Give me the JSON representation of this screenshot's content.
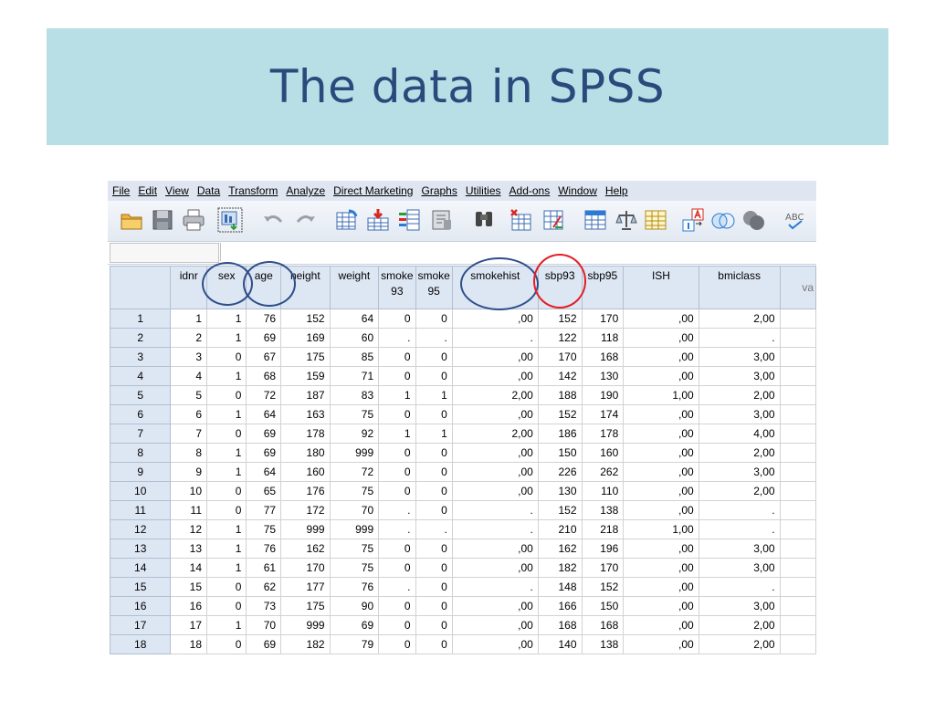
{
  "slide": {
    "title": "The data in SPSS"
  },
  "menu": [
    "File",
    "Edit",
    "View",
    "Data",
    "Transform",
    "Analyze",
    "Direct Marketing",
    "Graphs",
    "Utilities",
    "Add-ons",
    "Window",
    "Help"
  ],
  "toolbar_icons": [
    "open-folder-icon",
    "save-icon",
    "print-icon",
    "dialog-recall-icon",
    "undo-icon",
    "redo-icon",
    "goto-case-icon",
    "goto-variable-icon",
    "variables-icon",
    "run-descriptives-icon",
    "find-icon",
    "insert-cases-icon",
    "insert-variable-icon",
    "split-file-icon",
    "weight-cases-icon",
    "select-cases-icon",
    "value-labels-icon",
    "use-sets-icon",
    "show-sets-icon",
    "spell-check-icon"
  ],
  "columns": [
    {
      "key": "idnr",
      "label": "idnr",
      "label2": ""
    },
    {
      "key": "sex",
      "label": "sex",
      "label2": ""
    },
    {
      "key": "age",
      "label": "age",
      "label2": ""
    },
    {
      "key": "height",
      "label": "height",
      "label2": ""
    },
    {
      "key": "weight",
      "label": "weight",
      "label2": ""
    },
    {
      "key": "smoke93",
      "label": "smoke",
      "label2": "93"
    },
    {
      "key": "smoke95",
      "label": "smoke",
      "label2": "95"
    },
    {
      "key": "smokehist",
      "label": "smokehist",
      "label2": ""
    },
    {
      "key": "sbp93",
      "label": "sbp93",
      "label2": ""
    },
    {
      "key": "sbp95",
      "label": "sbp95",
      "label2": ""
    },
    {
      "key": "ISH",
      "label": "ISH",
      "label2": ""
    },
    {
      "key": "bmiclass",
      "label": "bmiclass",
      "label2": ""
    },
    {
      "key": "var",
      "label": "va",
      "label2": ""
    }
  ],
  "rows": [
    {
      "n": "1",
      "cells": [
        "1",
        "1",
        "76",
        "152",
        "64",
        "0",
        "0",
        ",00",
        "152",
        "170",
        ",00",
        "2,00",
        ""
      ]
    },
    {
      "n": "2",
      "cells": [
        "2",
        "1",
        "69",
        "169",
        "60",
        ".",
        ".",
        ".",
        "122",
        "118",
        ",00",
        ".",
        ""
      ]
    },
    {
      "n": "3",
      "cells": [
        "3",
        "0",
        "67",
        "175",
        "85",
        "0",
        "0",
        ",00",
        "170",
        "168",
        ",00",
        "3,00",
        ""
      ]
    },
    {
      "n": "4",
      "cells": [
        "4",
        "1",
        "68",
        "159",
        "71",
        "0",
        "0",
        ",00",
        "142",
        "130",
        ",00",
        "3,00",
        ""
      ]
    },
    {
      "n": "5",
      "cells": [
        "5",
        "0",
        "72",
        "187",
        "83",
        "1",
        "1",
        "2,00",
        "188",
        "190",
        "1,00",
        "2,00",
        ""
      ]
    },
    {
      "n": "6",
      "cells": [
        "6",
        "1",
        "64",
        "163",
        "75",
        "0",
        "0",
        ",00",
        "152",
        "174",
        ",00",
        "3,00",
        ""
      ]
    },
    {
      "n": "7",
      "cells": [
        "7",
        "0",
        "69",
        "178",
        "92",
        "1",
        "1",
        "2,00",
        "186",
        "178",
        ",00",
        "4,00",
        ""
      ]
    },
    {
      "n": "8",
      "cells": [
        "8",
        "1",
        "69",
        "180",
        "999",
        "0",
        "0",
        ",00",
        "150",
        "160",
        ",00",
        "2,00",
        ""
      ]
    },
    {
      "n": "9",
      "cells": [
        "9",
        "1",
        "64",
        "160",
        "72",
        "0",
        "0",
        ",00",
        "226",
        "262",
        ",00",
        "3,00",
        ""
      ]
    },
    {
      "n": "10",
      "cells": [
        "10",
        "0",
        "65",
        "176",
        "75",
        "0",
        "0",
        ",00",
        "130",
        "110",
        ",00",
        "2,00",
        ""
      ]
    },
    {
      "n": "11",
      "cells": [
        "11",
        "0",
        "77",
        "172",
        "70",
        ".",
        "0",
        ".",
        "152",
        "138",
        ",00",
        ".",
        ""
      ]
    },
    {
      "n": "12",
      "cells": [
        "12",
        "1",
        "75",
        "999",
        "999",
        ".",
        ".",
        ".",
        "210",
        "218",
        "1,00",
        ".",
        ""
      ]
    },
    {
      "n": "13",
      "cells": [
        "13",
        "1",
        "76",
        "162",
        "75",
        "0",
        "0",
        ",00",
        "162",
        "196",
        ",00",
        "3,00",
        ""
      ]
    },
    {
      "n": "14",
      "cells": [
        "14",
        "1",
        "61",
        "170",
        "75",
        "0",
        "0",
        ",00",
        "182",
        "170",
        ",00",
        "3,00",
        ""
      ]
    },
    {
      "n": "15",
      "cells": [
        "15",
        "0",
        "62",
        "177",
        "76",
        ".",
        "0",
        ".",
        "148",
        "152",
        ",00",
        ".",
        ""
      ]
    },
    {
      "n": "16",
      "cells": [
        "16",
        "0",
        "73",
        "175",
        "90",
        "0",
        "0",
        ",00",
        "166",
        "150",
        ",00",
        "3,00",
        ""
      ]
    },
    {
      "n": "17",
      "cells": [
        "17",
        "1",
        "70",
        "999",
        "69",
        "0",
        "0",
        ",00",
        "168",
        "168",
        ",00",
        "2,00",
        ""
      ]
    },
    {
      "n": "18",
      "cells": [
        "18",
        "0",
        "69",
        "182",
        "79",
        "0",
        "0",
        ",00",
        "140",
        "138",
        ",00",
        "2,00",
        ""
      ]
    }
  ],
  "highlights": {
    "blue": [
      "sex",
      "age",
      "smokehist"
    ],
    "red": [
      "sbp93"
    ],
    "blue_color": "#2e4e8a",
    "red_color": "#e31e24"
  }
}
